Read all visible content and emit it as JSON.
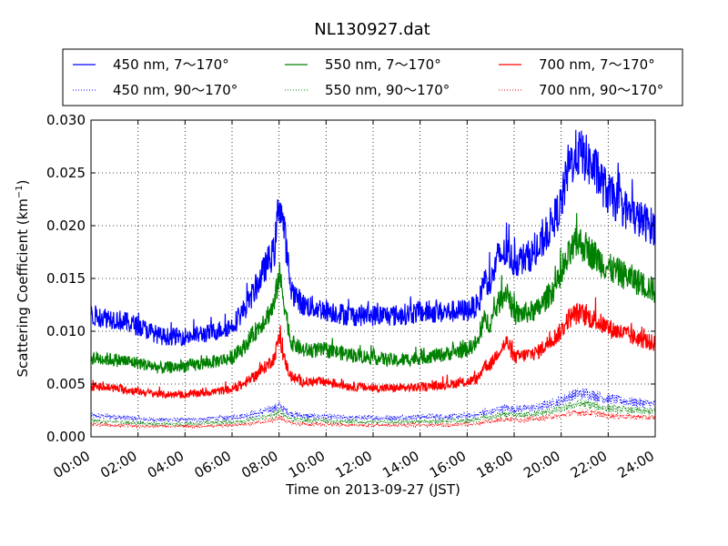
{
  "chart_data": {
    "type": "line",
    "title": "NL130927.dat",
    "xlabel": "Time on 2013-09-27 (JST)",
    "ylabel": "Scattering Coefficient (km",
    "ylabel_sup": "−1",
    "ylabel_end": ")",
    "xlim": [
      0,
      24
    ],
    "ylim": [
      0,
      0.03
    ],
    "grid": true,
    "legend_placement": "top, above plot, 3 columns",
    "x_ticks": [
      0,
      2,
      4,
      6,
      8,
      10,
      12,
      14,
      16,
      18,
      20,
      22,
      24
    ],
    "x_tick_labels": [
      "00:00",
      "02:00",
      "04:00",
      "06:00",
      "08:00",
      "10:00",
      "12:00",
      "14:00",
      "16:00",
      "18:00",
      "20:00",
      "22:00",
      "24:00"
    ],
    "y_ticks": [
      0,
      0.005,
      0.01,
      0.015,
      0.02,
      0.025,
      0.03
    ],
    "y_tick_labels": [
      "0.000",
      "0.005",
      "0.010",
      "0.015",
      "0.020",
      "0.025",
      "0.030"
    ],
    "x": [
      0,
      1,
      2,
      3,
      4,
      5,
      6,
      6.5,
      7,
      7.5,
      7.8,
      8,
      8.2,
      8.5,
      9,
      10,
      11,
      12,
      13,
      14,
      15,
      16,
      16.5,
      16.7,
      17,
      17.3,
      17.7,
      18,
      19,
      20,
      20.3,
      20.7,
      21,
      21.5,
      22,
      23,
      24
    ],
    "series": [
      {
        "name": "450 nm, 7～170°",
        "color": "#0000ff",
        "style": "solid",
        "values": [
          0.0115,
          0.0112,
          0.0105,
          0.0095,
          0.0095,
          0.0098,
          0.0105,
          0.012,
          0.014,
          0.0165,
          0.0175,
          0.0225,
          0.02,
          0.014,
          0.0125,
          0.012,
          0.0115,
          0.0115,
          0.0115,
          0.0118,
          0.0118,
          0.012,
          0.0125,
          0.015,
          0.0145,
          0.017,
          0.0175,
          0.0165,
          0.0175,
          0.022,
          0.0255,
          0.027,
          0.0265,
          0.025,
          0.023,
          0.021,
          0.0198
        ]
      },
      {
        "name": "450 nm, 90～170°",
        "color": "#0000ff",
        "style": "dotted",
        "values": [
          0.002,
          0.0019,
          0.0017,
          0.0016,
          0.0016,
          0.0017,
          0.0018,
          0.002,
          0.0022,
          0.0025,
          0.0027,
          0.003,
          0.0026,
          0.0022,
          0.002,
          0.0019,
          0.0018,
          0.0018,
          0.0018,
          0.0019,
          0.0019,
          0.002,
          0.0021,
          0.0024,
          0.0023,
          0.0026,
          0.0027,
          0.0026,
          0.0028,
          0.0034,
          0.0038,
          0.0041,
          0.0041,
          0.0039,
          0.0036,
          0.0033,
          0.0031
        ]
      },
      {
        "name": "550 nm, 7～170°",
        "color": "#008000",
        "style": "solid",
        "values": [
          0.0075,
          0.0073,
          0.007,
          0.0065,
          0.0067,
          0.007,
          0.0075,
          0.0085,
          0.01,
          0.0115,
          0.0125,
          0.0155,
          0.013,
          0.009,
          0.0082,
          0.0082,
          0.0078,
          0.0075,
          0.0072,
          0.0075,
          0.0078,
          0.0083,
          0.009,
          0.011,
          0.0108,
          0.0125,
          0.014,
          0.0115,
          0.012,
          0.015,
          0.017,
          0.0185,
          0.018,
          0.017,
          0.016,
          0.015,
          0.0138
        ]
      },
      {
        "name": "550 nm, 90～170°",
        "color": "#008000",
        "style": "dotted",
        "values": [
          0.0015,
          0.0014,
          0.0013,
          0.0012,
          0.0012,
          0.0013,
          0.0014,
          0.0015,
          0.0017,
          0.0019,
          0.0021,
          0.0024,
          0.0021,
          0.0017,
          0.0016,
          0.0015,
          0.0014,
          0.0014,
          0.0014,
          0.0014,
          0.0015,
          0.0015,
          0.0016,
          0.0019,
          0.0018,
          0.002,
          0.0021,
          0.002,
          0.0022,
          0.0026,
          0.0029,
          0.0031,
          0.0031,
          0.0029,
          0.0027,
          0.0025,
          0.0024
        ]
      },
      {
        "name": "700 nm, 7～170°",
        "color": "#ff0000",
        "style": "solid",
        "values": [
          0.0048,
          0.0046,
          0.0043,
          0.004,
          0.004,
          0.0042,
          0.0045,
          0.005,
          0.0058,
          0.0068,
          0.0075,
          0.0095,
          0.0075,
          0.0057,
          0.0052,
          0.0052,
          0.0048,
          0.0046,
          0.0046,
          0.0047,
          0.0049,
          0.0052,
          0.0055,
          0.0068,
          0.0068,
          0.008,
          0.009,
          0.0075,
          0.008,
          0.01,
          0.0112,
          0.0117,
          0.0115,
          0.011,
          0.0103,
          0.0095,
          0.0088
        ]
      },
      {
        "name": "700 nm, 90～170°",
        "color": "#ff0000",
        "style": "dotted",
        "values": [
          0.0012,
          0.0011,
          0.001,
          0.001,
          0.001,
          0.001,
          0.0011,
          0.0012,
          0.0013,
          0.0015,
          0.0016,
          0.0019,
          0.0016,
          0.0013,
          0.0012,
          0.0012,
          0.0011,
          0.0011,
          0.0011,
          0.0011,
          0.0011,
          0.0012,
          0.0012,
          0.0015,
          0.0014,
          0.0016,
          0.0017,
          0.0016,
          0.0017,
          0.002,
          0.0022,
          0.0023,
          0.0023,
          0.0022,
          0.002,
          0.0019,
          0.0018
        ]
      }
    ]
  }
}
